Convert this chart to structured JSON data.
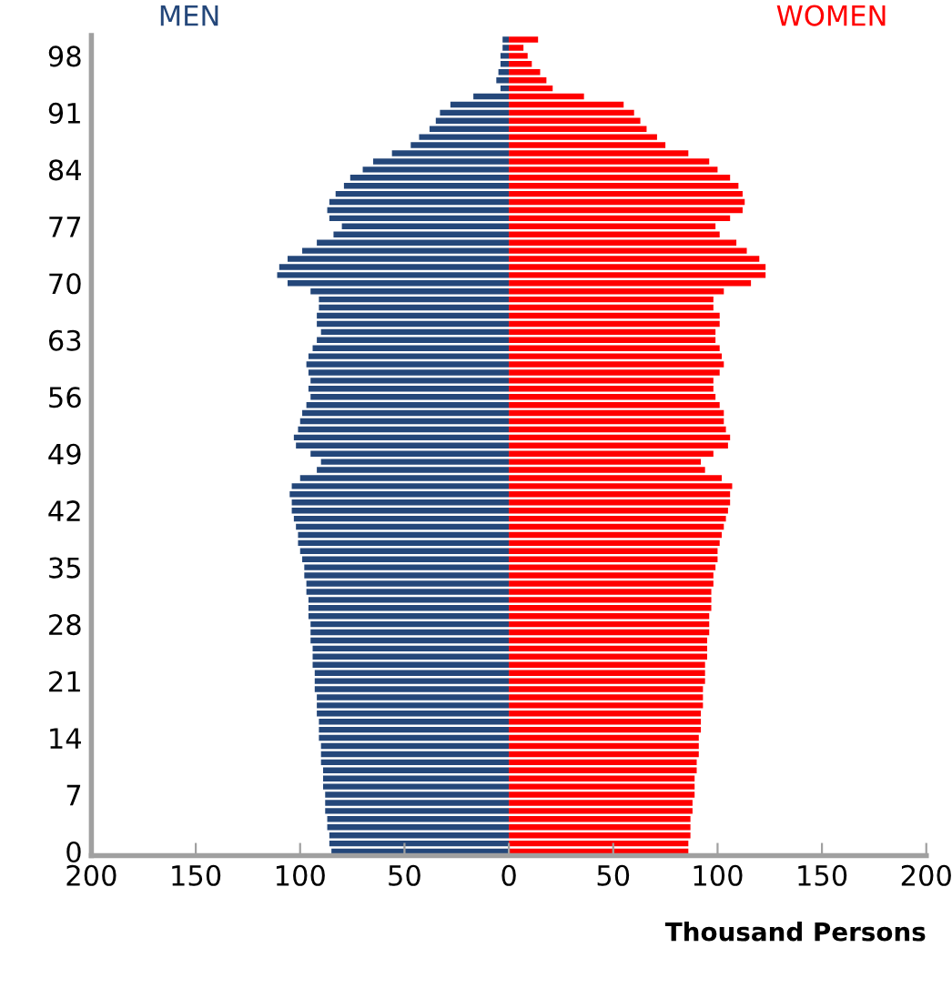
{
  "chart_data": {
    "type": "bar",
    "orientation": "horizontal",
    "xlabel": "Thousand Persons",
    "categories": [
      null,
      null,
      "98",
      null,
      null,
      null,
      null,
      null,
      null,
      "91",
      null,
      null,
      null,
      null,
      null,
      null,
      "84",
      null,
      null,
      null,
      null,
      null,
      null,
      "77",
      null,
      null,
      null,
      null,
      null,
      null,
      "70",
      null,
      null,
      null,
      null,
      null,
      null,
      "63",
      null,
      null,
      null,
      null,
      null,
      null,
      "56",
      null,
      null,
      null,
      null,
      null,
      null,
      "49",
      null,
      null,
      null,
      null,
      null,
      null,
      "42",
      null,
      null,
      null,
      null,
      null,
      null,
      "35",
      null,
      null,
      null,
      null,
      null,
      null,
      "28",
      null,
      null,
      null,
      null,
      null,
      null,
      "21",
      null,
      null,
      null,
      null,
      null,
      null,
      "14",
      null,
      null,
      null,
      null,
      null,
      null,
      "7",
      null,
      null,
      null,
      null,
      null,
      null,
      "0"
    ],
    "series": [
      {
        "name": "MEN",
        "color": "#24477a",
        "values": [
          -3,
          -3,
          -4,
          -4,
          -5,
          -6,
          -4,
          -17,
          -28,
          -33,
          -35,
          -38,
          -43,
          -47,
          -56,
          -65,
          -70,
          -76,
          -79,
          -83,
          -86,
          -87,
          -86,
          -80,
          -84,
          -92,
          -99,
          -106,
          -110,
          -111,
          -106,
          -95,
          -91,
          -91,
          -92,
          -92,
          -90,
          -92,
          -94,
          -96,
          -97,
          -96,
          -95,
          -96,
          -95,
          -97,
          -99,
          -100,
          -101,
          -103,
          -102,
          -95,
          -90,
          -92,
          -100,
          -104,
          -105,
          -104,
          -104,
          -103,
          -102,
          -101,
          -101,
          -100,
          -99,
          -98,
          -98,
          -97,
          -97,
          -96,
          -96,
          -96,
          -95,
          -95,
          -95,
          -94,
          -94,
          -94,
          -93,
          -93,
          -93,
          -92,
          -92,
          -92,
          -91,
          -91,
          -91,
          -90,
          -90,
          -90,
          -89,
          -89,
          -89,
          -88,
          -88,
          -88,
          -87,
          -87,
          -86,
          -86,
          -85
        ]
      },
      {
        "name": "WOMEN",
        "color": "#ff0000",
        "values": [
          14,
          7,
          9,
          11,
          15,
          18,
          21,
          36,
          55,
          60,
          63,
          66,
          71,
          75,
          86,
          96,
          100,
          106,
          110,
          112,
          113,
          112,
          106,
          99,
          101,
          109,
          114,
          120,
          123,
          123,
          116,
          103,
          98,
          98,
          101,
          101,
          99,
          99,
          101,
          102,
          103,
          101,
          98,
          98,
          99,
          101,
          103,
          103,
          104,
          106,
          105,
          98,
          92,
          94,
          102,
          107,
          106,
          106,
          105,
          104,
          103,
          102,
          101,
          100,
          100,
          99,
          98,
          98,
          97,
          97,
          97,
          96,
          96,
          96,
          95,
          95,
          95,
          94,
          94,
          94,
          93,
          93,
          93,
          92,
          92,
          92,
          91,
          91,
          91,
          90,
          90,
          89,
          89,
          89,
          88,
          88,
          87,
          87,
          87,
          86,
          86
        ]
      }
    ],
    "xlim": [
      -200,
      200
    ],
    "xticks": [
      {
        "value": -200,
        "label": "200"
      },
      {
        "value": -150,
        "label": "150"
      },
      {
        "value": -100,
        "label": "100"
      },
      {
        "value": -50,
        "label": "50"
      },
      0,
      50,
      100,
      150,
      200
    ],
    "stacked": true,
    "grid": false,
    "legend": false
  }
}
